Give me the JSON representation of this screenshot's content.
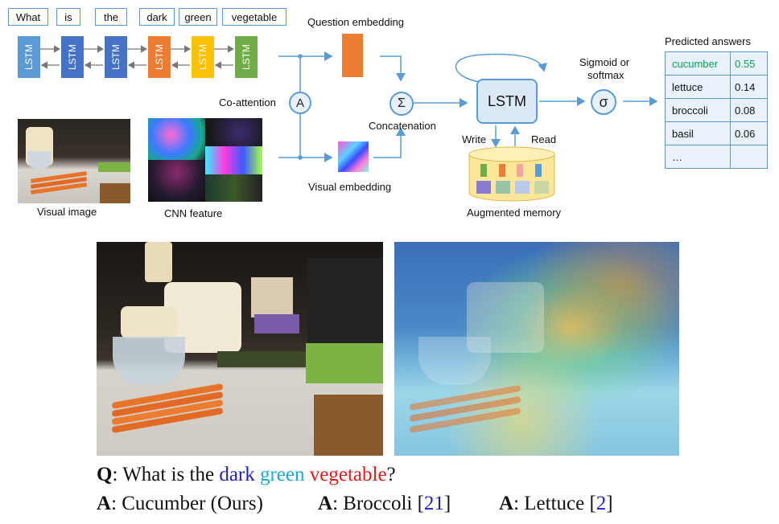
{
  "question_words": [
    "What",
    "is",
    "the",
    "dark",
    "green",
    "vegetable"
  ],
  "lstm_label": "LSTM",
  "lstm_colors": [
    "#5b9bd5",
    "#4472c4",
    "#4472c4",
    "#ed7d31",
    "#ffc000",
    "#70ad47"
  ],
  "labels": {
    "question_embedding": "Question embedding",
    "visual_embedding": "Visual embedding",
    "co_attention": "Co-attention",
    "co_attention_symbol": "A",
    "concat_symbol": "Σ",
    "concatenation": "Concatenation",
    "main_lstm": "LSTM",
    "sigma_symbol": "σ",
    "sigmoid_softmax_line1": "Sigmoid or",
    "sigmoid_softmax_line2": "softmax",
    "predicted_answers": "Predicted answers",
    "write": "Write",
    "read": "Read",
    "augmented_memory": "Augmented memory",
    "visual_image": "Visual image",
    "cnn_feature": "CNN feature"
  },
  "answers": [
    {
      "name": "cucumber",
      "score": "0.55",
      "highlight": true
    },
    {
      "name": "lettuce",
      "score": "0.14",
      "highlight": false
    },
    {
      "name": "broccoli",
      "score": "0.08",
      "highlight": false
    },
    {
      "name": "basil",
      "score": "0.06",
      "highlight": false
    },
    {
      "name": "…",
      "score": "",
      "highlight": false
    }
  ],
  "colors": {
    "accent_blue": "#5b9bd5",
    "highlight_green": "#00a651",
    "question_embedding": "#ed7d31",
    "dark_word": "#1f1fbf",
    "green_word": "#1ca9d6",
    "vegetable_word": "#e31b1b",
    "citation": "#1f1fbf"
  },
  "caption": {
    "q_prefix": "Q",
    "q_colon": ": What is the ",
    "q_dark": "dark",
    "q_green": "green",
    "q_vegetable": "vegetable",
    "q_end": "?",
    "a1_prefix": "A",
    "a1_text": ": Cucumber (Ours)",
    "a2_prefix": "A",
    "a2_text": ": Broccoli [",
    "a2_ref": "21",
    "a2_close": "]",
    "a3_prefix": "A",
    "a3_text": ": Lettuce [",
    "a3_ref": "2",
    "a3_close": "]"
  }
}
